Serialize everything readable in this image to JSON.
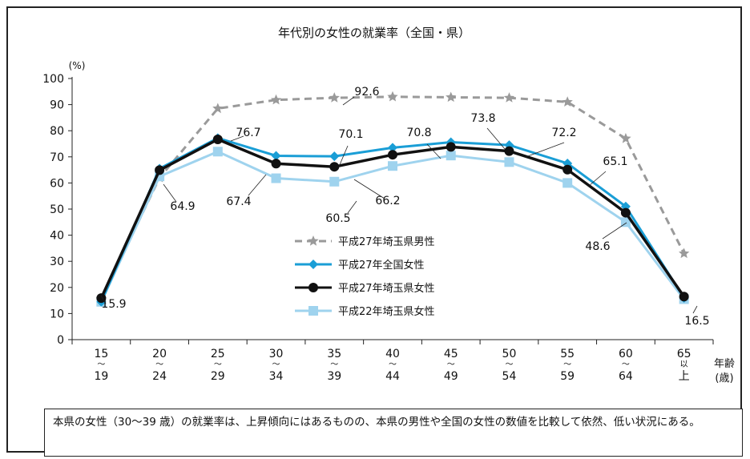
{
  "chart_data": {
    "type": "line",
    "title": "年代別の女性の就業率（全国・県）",
    "ylabel": "(%)",
    "xlabel_lines": [
      "年齢",
      "(歳)"
    ],
    "ylim": [
      0,
      100
    ],
    "yticks": [
      0,
      10,
      20,
      30,
      40,
      50,
      60,
      70,
      80,
      90,
      100
    ],
    "categories": [
      [
        "15",
        "〜",
        "19"
      ],
      [
        "20",
        "〜",
        "24"
      ],
      [
        "25",
        "〜",
        "29"
      ],
      [
        "30",
        "〜",
        "34"
      ],
      [
        "35",
        "〜",
        "39"
      ],
      [
        "40",
        "〜",
        "44"
      ],
      [
        "45",
        "〜",
        "49"
      ],
      [
        "50",
        "〜",
        "54"
      ],
      [
        "55",
        "〜",
        "59"
      ],
      [
        "60",
        "〜",
        "64"
      ],
      [
        "65",
        "以",
        "上"
      ]
    ],
    "series": [
      {
        "name": "平成27年埼玉県男性",
        "color": "#9a9a9a",
        "marker": "star",
        "dashed": true,
        "values": [
          15.5,
          62.0,
          88.5,
          91.8,
          92.6,
          93.0,
          92.8,
          92.6,
          91.0,
          77.0,
          33.0
        ]
      },
      {
        "name": "平成27年全国女性",
        "color": "#1a9ed6",
        "marker": "diamond",
        "dashed": false,
        "values": [
          14.5,
          65.5,
          77.2,
          70.4,
          70.2,
          73.5,
          75.6,
          74.5,
          67.5,
          51.0,
          16.0
        ]
      },
      {
        "name": "平成27年埼玉県女性",
        "color": "#111111",
        "marker": "circle",
        "dashed": false,
        "values": [
          15.9,
          64.9,
          76.7,
          67.4,
          66.2,
          70.8,
          73.8,
          72.2,
          65.1,
          48.6,
          16.5
        ]
      },
      {
        "name": "平成22年埼玉県女性",
        "color": "#9fd3ee",
        "marker": "square",
        "dashed": false,
        "values": [
          14.5,
          62.5,
          72.0,
          61.8,
          60.5,
          66.5,
          70.5,
          68.0,
          60.0,
          45.0,
          15.5
        ]
      }
    ],
    "data_labels": [
      "15.9",
      "64.9",
      "76.7",
      "67.4",
      "70.1",
      "60.5",
      "66.2",
      "70.8",
      "73.8",
      "72.2",
      "65.1",
      "48.6",
      "16.5",
      "92.6"
    ]
  },
  "note": "本県の女性（30〜39 歳）の就業率は、上昇傾向にはあるものの、本県の男性や全国の女性の数値を比較して依然、低い状況にある。"
}
